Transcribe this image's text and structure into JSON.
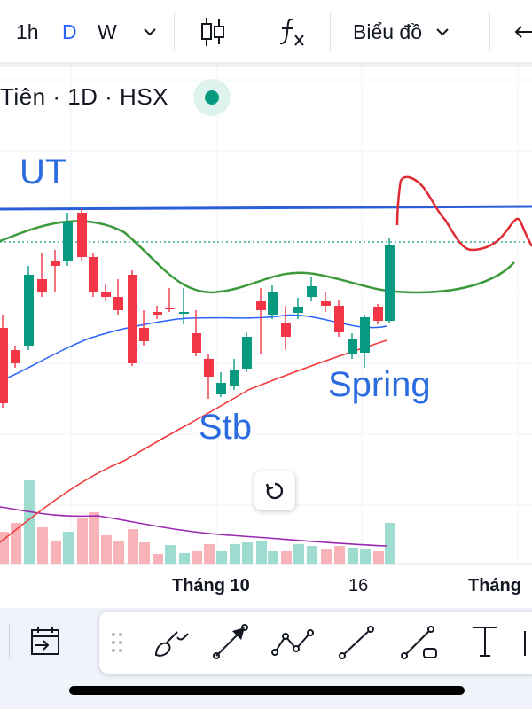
{
  "toolbar": {
    "interval_1h": "1h",
    "interval_d": "D",
    "interval_w": "W",
    "chart_menu_label": "Biểu đồ"
  },
  "symbol": {
    "text": "Tiên · 1D · HSX"
  },
  "annotations": {
    "ut": "UT",
    "stb": "Stb",
    "spring": "Spring"
  },
  "time_axis": {
    "labels": [
      "Tháng 10",
      "16",
      "Tháng"
    ]
  },
  "colors": {
    "up": "#089981",
    "down": "#f23645",
    "blue_line": "#2b5fd9",
    "accent": "#2962ff",
    "ma_red": "#ef3b3b",
    "ma_blue": "#2962ff",
    "green_curve": "#3c9a3c",
    "volume_ma": "#9c27b0"
  },
  "icons": {
    "chart_type": "candlestick-icon",
    "indicators": "fx-icon",
    "reset": "reset-view-icon"
  }
}
